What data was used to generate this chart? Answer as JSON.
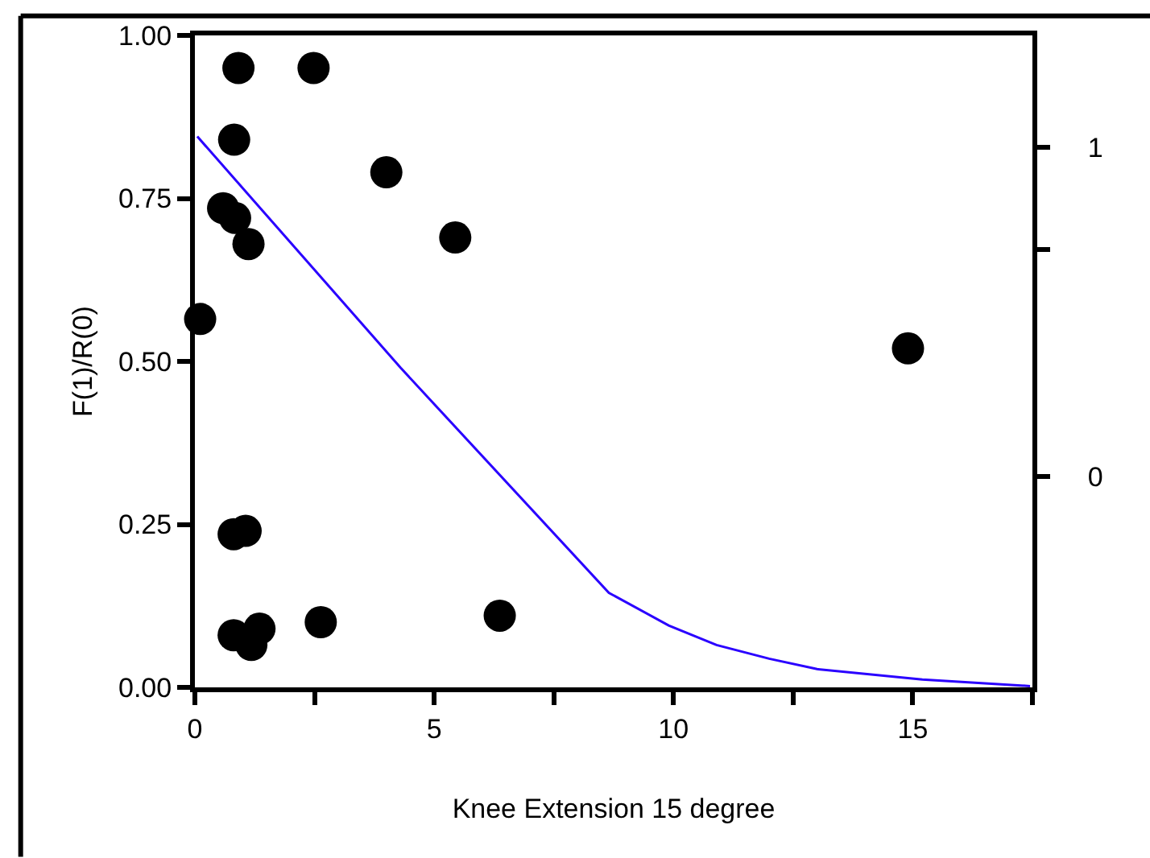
{
  "chart_data": {
    "type": "scatter",
    "xlabel": "Knee Extension 15 degree",
    "ylabel": "F(1)/R(0)",
    "xlim": [
      0,
      17.5
    ],
    "xticks": [
      0,
      {
        "value": 2.5,
        "label": null
      },
      5,
      {
        "value": 7.5,
        "label": null
      },
      10,
      {
        "value": 12.5,
        "label": null
      },
      15,
      {
        "value": 17.5,
        "label": null
      }
    ],
    "ylim": [
      0,
      1
    ],
    "yticks": [
      {
        "value": 0,
        "label": "0.00"
      },
      {
        "value": 0.25,
        "label": "0.25"
      },
      {
        "value": 0.5,
        "label": "0.50"
      },
      {
        "value": 0.75,
        "label": "0.75"
      },
      {
        "value": 1,
        "label": "1.00"
      }
    ],
    "y2lim": [
      -0.64,
      1.34
    ],
    "y2ticks": [
      0,
      {
        "value": 0.69,
        "label": null
      },
      1
    ],
    "marker": "circle",
    "series": [
      {
        "color": "#000000",
        "x": [
          0.91,
          2.48,
          0.82,
          4.0,
          0.59,
          0.84,
          1.12,
          5.44,
          0.11,
          0.81,
          1.06,
          0.81,
          1.18,
          1.35,
          2.63,
          6.37,
          14.9
        ],
        "values": [
          0.95,
          0.95,
          0.84,
          0.79,
          0.735,
          0.72,
          0.68,
          0.69,
          0.565,
          0.235,
          0.24,
          0.08,
          0.065,
          0.09,
          0.1,
          0.11,
          0.52
        ]
      },
      {
        "type": "line",
        "color": "#2a00ff",
        "marker": "none",
        "line_style": "solid",
        "x": [
          0.05,
          4.3,
          8.65,
          9.9,
          10.9,
          12.0,
          13.0,
          15.2,
          17.45
        ],
        "values": [
          0.845,
          0.49,
          0.145,
          0.095,
          0.065,
          0.044,
          0.028,
          0.012,
          0.002
        ]
      }
    ]
  }
}
